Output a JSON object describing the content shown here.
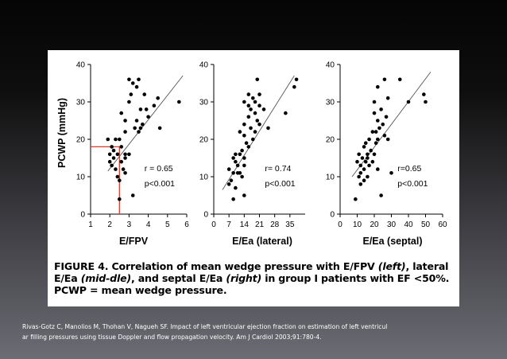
{
  "chart_data": [
    {
      "id": "left",
      "type": "scatter",
      "xlabel": "E/FPV",
      "ylabel": "PCWP (mmHg)",
      "xlim": [
        1,
        6
      ],
      "ylim": [
        0,
        40
      ],
      "xticks": [
        1,
        2,
        3,
        4,
        5,
        6
      ],
      "yticks": [
        0,
        10,
        20,
        30,
        40
      ],
      "annotation_lines": [
        "r = 0.65",
        "p<0.001"
      ],
      "regression": [
        [
          1.9,
          11.5
        ],
        [
          5.8,
          37
        ]
      ],
      "reference_point": [
        2.5,
        18
      ],
      "points": [
        [
          3.0,
          36
        ],
        [
          3.5,
          36
        ],
        [
          3.2,
          35
        ],
        [
          3.4,
          34
        ],
        [
          3.1,
          32
        ],
        [
          3.8,
          32
        ],
        [
          4.5,
          31
        ],
        [
          5.6,
          30
        ],
        [
          3.0,
          30
        ],
        [
          3.6,
          28
        ],
        [
          4.3,
          29
        ],
        [
          3.9,
          28
        ],
        [
          4.0,
          26
        ],
        [
          2.6,
          27
        ],
        [
          2.8,
          25
        ],
        [
          3.4,
          25
        ],
        [
          3.7,
          24
        ],
        [
          3.3,
          23
        ],
        [
          3.6,
          23
        ],
        [
          3.5,
          22
        ],
        [
          4.6,
          23
        ],
        [
          2.8,
          22
        ],
        [
          2.3,
          20
        ],
        [
          2.5,
          20
        ],
        [
          2.1,
          18
        ],
        [
          2.6,
          18
        ],
        [
          2.2,
          17
        ],
        [
          2.4,
          16
        ],
        [
          2.8,
          16
        ],
        [
          3.0,
          16
        ],
        [
          2.0,
          16
        ],
        [
          2.2,
          15
        ],
        [
          2.8,
          15
        ],
        [
          2.0,
          14
        ],
        [
          2.6,
          14
        ],
        [
          2.1,
          13
        ],
        [
          2.3,
          12
        ],
        [
          2.7,
          12
        ],
        [
          2.8,
          11
        ],
        [
          2.4,
          10
        ],
        [
          2.5,
          9
        ],
        [
          3.2,
          5
        ],
        [
          2.5,
          4
        ],
        [
          1.9,
          20
        ]
      ]
    },
    {
      "id": "middle",
      "type": "scatter",
      "xlabel": "E/Ea (lateral)",
      "ylabel": "",
      "xlim": [
        0,
        42
      ],
      "ylim": [
        0,
        40
      ],
      "xticks": [
        0,
        7,
        14,
        21,
        28,
        35
      ],
      "yticks": [
        0,
        10,
        20,
        30,
        40
      ],
      "annotation_lines": [
        "r= 0.74",
        "p<0.001"
      ],
      "regression": [
        [
          4,
          6.5
        ],
        [
          37,
          37
        ]
      ],
      "points": [
        [
          38,
          36
        ],
        [
          37,
          34
        ],
        [
          20,
          36
        ],
        [
          16,
          32
        ],
        [
          21,
          32
        ],
        [
          18,
          31
        ],
        [
          14,
          30
        ],
        [
          19,
          30
        ],
        [
          16,
          29
        ],
        [
          21,
          29
        ],
        [
          23,
          28
        ],
        [
          17,
          28
        ],
        [
          19,
          27
        ],
        [
          33,
          27
        ],
        [
          16,
          26
        ],
        [
          20,
          25
        ],
        [
          14,
          24
        ],
        [
          21,
          24
        ],
        [
          17,
          23
        ],
        [
          25,
          23
        ],
        [
          12,
          22
        ],
        [
          19,
          22
        ],
        [
          14,
          21
        ],
        [
          18,
          20
        ],
        [
          15,
          19
        ],
        [
          16,
          18
        ],
        [
          13,
          17
        ],
        [
          10,
          16
        ],
        [
          12,
          16
        ],
        [
          14,
          15
        ],
        [
          9,
          15
        ],
        [
          10,
          14
        ],
        [
          11,
          13
        ],
        [
          14,
          13
        ],
        [
          7,
          12
        ],
        [
          9,
          11
        ],
        [
          11,
          11
        ],
        [
          12,
          11
        ],
        [
          13,
          10
        ],
        [
          8,
          9
        ],
        [
          7,
          8
        ],
        [
          10,
          7
        ],
        [
          14,
          5
        ],
        [
          9,
          4
        ]
      ]
    },
    {
      "id": "right",
      "type": "scatter",
      "xlabel": "E/Ea (septal)",
      "ylabel": "",
      "xlim": [
        0,
        60
      ],
      "ylim": [
        0,
        40
      ],
      "xticks": [
        0,
        10,
        20,
        30,
        40,
        50,
        60
      ],
      "yticks": [
        0,
        10,
        20,
        30,
        40
      ],
      "annotation_lines": [
        "r=0.65",
        "p<0.001"
      ],
      "regression": [
        [
          7,
          10
        ],
        [
          53,
          38
        ]
      ],
      "points": [
        [
          26,
          36
        ],
        [
          35,
          36
        ],
        [
          49,
          32
        ],
        [
          22,
          34
        ],
        [
          20,
          30
        ],
        [
          28,
          31
        ],
        [
          40,
          30
        ],
        [
          50,
          30
        ],
        [
          24,
          28
        ],
        [
          20,
          27
        ],
        [
          27,
          26
        ],
        [
          22,
          25
        ],
        [
          25,
          24
        ],
        [
          23,
          23
        ],
        [
          21,
          22
        ],
        [
          19,
          22
        ],
        [
          26,
          21
        ],
        [
          17,
          20
        ],
        [
          22,
          20
        ],
        [
          28,
          20
        ],
        [
          15,
          19
        ],
        [
          21,
          19
        ],
        [
          14,
          18
        ],
        [
          18,
          17
        ],
        [
          16,
          16
        ],
        [
          20,
          16
        ],
        [
          11,
          16
        ],
        [
          13,
          15
        ],
        [
          16,
          15
        ],
        [
          19,
          14
        ],
        [
          10,
          14
        ],
        [
          15,
          14
        ],
        [
          12,
          13
        ],
        [
          17,
          13
        ],
        [
          22,
          12
        ],
        [
          14,
          12
        ],
        [
          12,
          11
        ],
        [
          11,
          10
        ],
        [
          16,
          10
        ],
        [
          14,
          9
        ],
        [
          12,
          8
        ],
        [
          24,
          5
        ],
        [
          9,
          4
        ],
        [
          30,
          11
        ]
      ]
    }
  ],
  "caption": {
    "p1": "FIGURE 4. Correlation of mean wedge pressure with E/FPV ",
    "i1": "(left)",
    "p2": ", lateral E/Ea ",
    "i2": "(mid-dle)",
    "p3": ", and septal E/Ea ",
    "i3": "(right)",
    "p4": " in group I patients with EF <50%. PCWP = mean wedge pressure."
  },
  "citation": {
    "line1": "Rivas-Gotz C, Manolios M, Thohan V, Nagueh SF. Impact of left ventricular ejection fraction on estimation of left ventricul",
    "line2": "ar filling pressures using tissue Doppler and flow propagation velocity. Am J Cardiol 2003;91:780-4."
  },
  "colors": {
    "reference_line": "#d83a2a",
    "point": "#000000",
    "regression": "#555555"
  }
}
